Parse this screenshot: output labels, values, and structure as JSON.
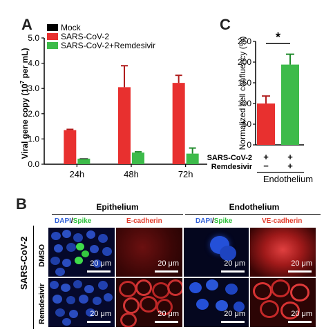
{
  "panel_labels": {
    "a": "A",
    "b": "B",
    "c": "C"
  },
  "chart_data": [
    {
      "type": "bar",
      "panel": "A",
      "ylabel": "Viral gene copy (10^7 per mL)",
      "ylabel_main": "Viral gene copy (10",
      "ylabel_sup": "7",
      "ylabel_tail": " per mL)",
      "categories": [
        "24h",
        "48h",
        "72h"
      ],
      "ylim": [
        0,
        5.0
      ],
      "yticks": [
        "0.0",
        "1.0",
        "2.0",
        "3.0",
        "4.0",
        "5.0"
      ],
      "legend_position": "top-left",
      "series": [
        {
          "name": "Mock",
          "color": "#000000",
          "values": [
            0,
            0,
            0
          ],
          "errors": [
            0,
            0,
            0
          ]
        },
        {
          "name": "SARS-CoV-2",
          "color": "#e8302f",
          "values": [
            1.35,
            3.05,
            3.22
          ],
          "errors": [
            0.03,
            0.85,
            0.3
          ]
        },
        {
          "name": "SARS-CoV-2+Remdesivir",
          "color": "#3dbb4a",
          "values": [
            0.22,
            0.46,
            0.42
          ],
          "errors": [
            0.0,
            0.03,
            0.22
          ]
        }
      ]
    },
    {
      "type": "bar",
      "panel": "C",
      "ylabel": "Normalized cell confluency (%)",
      "ylim": [
        0,
        250
      ],
      "yticks": [
        "0",
        "50",
        "100",
        "150",
        "200",
        "250"
      ],
      "xlabel": "Endothelium",
      "significance": "*",
      "condition_labels": [
        "SARS-CoV-2",
        "Remdesivir"
      ],
      "conditions": [
        [
          "+",
          "−"
        ],
        [
          "+",
          "+"
        ]
      ],
      "values": [
        100,
        194
      ],
      "errors": [
        18,
        25
      ],
      "colors": [
        "#e8302f",
        "#3dbb4a"
      ]
    }
  ],
  "panel_b": {
    "row_group_label": "SARS-CoV-2",
    "rows": [
      "DMSO",
      "Remdesivir"
    ],
    "groups": [
      {
        "title": "Epithelium",
        "dapi": "DAPI",
        "slash": "/",
        "spike": "Spike",
        "marker": "E-cadherin"
      },
      {
        "title": "Endothelium",
        "dapi": "DAPI",
        "slash": "/",
        "spike": "Spike",
        "marker": "VE-cadherin"
      }
    ],
    "scale_label": "20 μm",
    "colors": {
      "dapi": "#2f5fd8",
      "spike": "#2bbf3a",
      "cadherin": "#e23a2a"
    }
  }
}
